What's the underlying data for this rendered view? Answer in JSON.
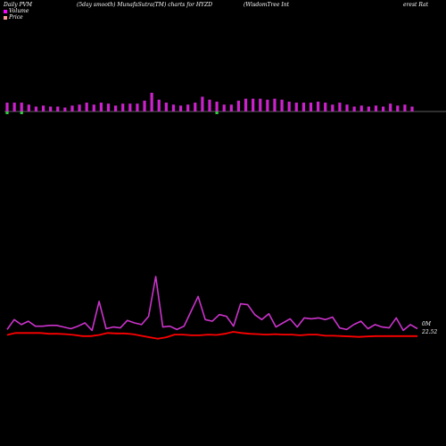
{
  "header": {
    "left": "Daily PVM",
    "center": "(5day smooth) MunafaSutra(TM) charts for HYZD",
    "right_a": "(WisdomTree Int",
    "right_b": "erest Rat"
  },
  "legend": {
    "volume_label": "Volume",
    "price_label": "Price",
    "volume_color": "#ff00ff",
    "price_color": "#ff9999"
  },
  "chart_data": {
    "type": "bar",
    "panels": [
      "volume",
      "price"
    ],
    "colors": {
      "volume_up": "#cc22cc",
      "volume_down": "#2ecc40",
      "baseline": "#bbbbbb",
      "volume_line": "#cc33cc",
      "price_line": "#ff0000"
    },
    "volume_bars": {
      "values": [
        9,
        9,
        9,
        7,
        5,
        6,
        5,
        5,
        4,
        6,
        7,
        9,
        7,
        9,
        8,
        6,
        8,
        8,
        8,
        11,
        19,
        12,
        9,
        7,
        6,
        7,
        9,
        15,
        12,
        10,
        7,
        7,
        11,
        13,
        13,
        13,
        12,
        13,
        12,
        10,
        9,
        9,
        9,
        10,
        9,
        7,
        9,
        7,
        5,
        6,
        5,
        6,
        5,
        8,
        6,
        7,
        5
      ],
      "direction": [
        "down",
        "up",
        "down",
        "up",
        "up",
        "up",
        "up",
        "up",
        "up",
        "up",
        "up",
        "up",
        "up",
        "up",
        "up",
        "up",
        "up",
        "up",
        "up",
        "up",
        "up",
        "up",
        "up",
        "up",
        "up",
        "up",
        "up",
        "up",
        "up",
        "down",
        "up",
        "up",
        "up",
        "up",
        "up",
        "up",
        "up",
        "up",
        "up",
        "up",
        "up",
        "up",
        "up",
        "up",
        "up",
        "up",
        "up",
        "up",
        "up",
        "up",
        "up",
        "up",
        "up",
        "up",
        "up",
        "up",
        "up"
      ]
    },
    "volume_line": [
      6,
      18,
      12,
      16,
      10,
      10,
      11,
      11,
      9,
      7,
      10,
      14,
      5,
      40,
      7,
      9,
      8,
      17,
      14,
      12,
      22,
      70,
      9,
      10,
      6,
      10,
      28,
      46,
      18,
      16,
      24,
      22,
      10,
      37,
      36,
      24,
      18,
      25,
      9,
      14,
      19,
      9,
      20,
      19,
      20,
      18,
      21,
      8,
      6,
      12,
      16,
      7,
      12,
      9,
      8,
      20,
      5,
      12,
      7
    ],
    "price_line": [
      22.55,
      22.6,
      22.6,
      22.6,
      22.6,
      22.58,
      22.58,
      22.57,
      22.55,
      22.52,
      22.52,
      22.55,
      22.6,
      22.59,
      22.59,
      22.57,
      22.53,
      22.49,
      22.45,
      22.49,
      22.56,
      22.56,
      22.54,
      22.54,
      22.56,
      22.55,
      22.58,
      22.63,
      22.6,
      22.58,
      22.57,
      22.56,
      22.57,
      22.56,
      22.56,
      22.54,
      22.56,
      22.56,
      22.53,
      22.53,
      22.52,
      22.51,
      22.5,
      22.51,
      22.52,
      22.52,
      22.52,
      22.52,
      22.52,
      22.52
    ],
    "last_volume_label": "0M",
    "last_price_label": "22.52"
  }
}
